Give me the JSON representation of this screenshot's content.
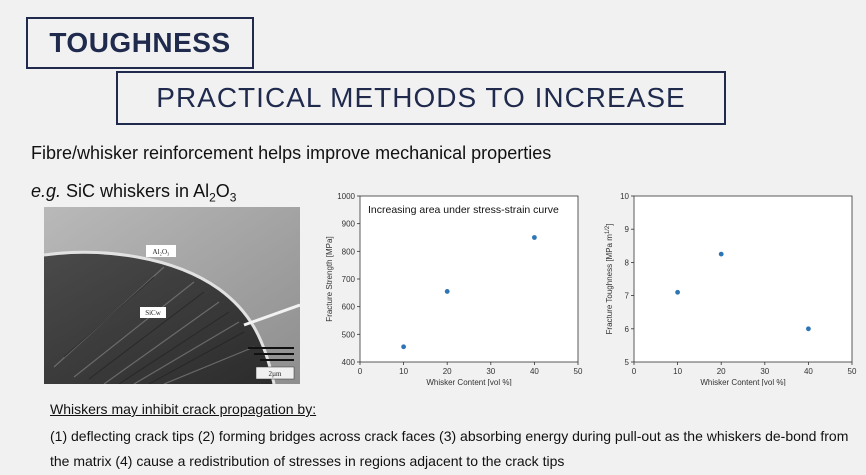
{
  "slide": {
    "title": "TOUGHNESS",
    "subtitle": "PRACTICAL METHODS TO INCREASE",
    "intro": "Fibre/whisker reinforcement helps improve mechanical properties",
    "example": {
      "prefix": "e.g.",
      "text1": " SiC whiskers in Al",
      "sub1": "2",
      "text2": "O",
      "sub2": "3"
    },
    "micrograph": {
      "label_al2o3": "Al₂O₃",
      "label_sicw": "SiCw",
      "scale_bar": "2µm"
    },
    "crack_heading": "Whiskers may inhibit crack propagation by:",
    "crack_points": "(1) deflecting crack tips (2) forming bridges across crack faces (3) absorbing energy during pull-out as the whiskers de-bond from the matrix (4) cause a redistribution of stresses in regions adjacent to the crack tips"
  },
  "chart_data": [
    {
      "type": "scatter",
      "xlabel": "Whisker Content [vol %]",
      "ylabel": "Fracture Strength [MPa]",
      "annotation": "Increasing area under stress-strain curve",
      "xlim": [
        0,
        50
      ],
      "ylim": [
        400,
        1000
      ],
      "xticks": [
        0,
        10,
        20,
        30,
        40,
        50
      ],
      "yticks": [
        400,
        500,
        600,
        700,
        800,
        900,
        1000
      ],
      "x": [
        10,
        20,
        40
      ],
      "y": [
        455,
        655,
        850
      ],
      "color": "#2e75b6"
    },
    {
      "type": "scatter",
      "xlabel": "Whisker Content [vol %]",
      "ylabel": "Fracture Toughness [MPa m",
      "ylabel_sup": "1/2",
      "ylabel_end": "]",
      "xlim": [
        0,
        50
      ],
      "ylim": [
        5,
        10
      ],
      "xticks": [
        0,
        10,
        20,
        30,
        40,
        50
      ],
      "yticks": [
        5,
        6,
        7,
        8,
        9,
        10
      ],
      "x": [
        10,
        20,
        40
      ],
      "y": [
        7.1,
        8.25,
        6.0
      ],
      "color": "#2e75b6"
    }
  ]
}
